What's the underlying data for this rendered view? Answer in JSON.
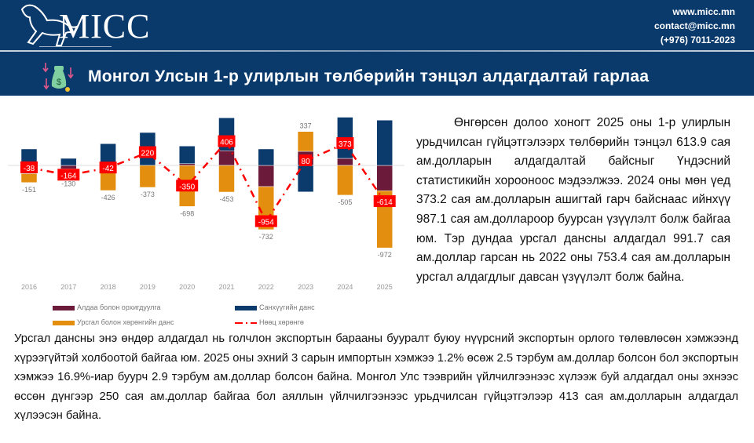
{
  "header": {
    "brand": "MICC",
    "website": "www.micc.mn",
    "email": "contact@micc.mn",
    "phone": "(+976) 7011-2023",
    "title": "Монгол Улсын 1-р улирлын төлбөрийн тэнцэл алдагдалтай гарлаа",
    "icon": "money-bag-down-arrows-icon"
  },
  "colors": {
    "header_bg": "#0a3a6c",
    "financial": "#0b3a6c",
    "errors": "#6b1a3a",
    "current": "#e38e0e",
    "reserves": "#ff0000"
  },
  "chart_data": {
    "type": "bar",
    "categories": [
      "2016",
      "2017",
      "2018",
      "2019",
      "2020",
      "2021",
      "2022",
      "2023",
      "2024",
      "2025"
    ],
    "series": [
      {
        "name": "Санхүүгийн данс",
        "key": "financial",
        "values": [
          280,
          120,
          330,
          560,
          300,
          560,
          280,
          -450,
          700,
          770
        ]
      },
      {
        "name": "Алдаа болон орхигдуулга",
        "key": "errors",
        "values": [
          -140,
          -60,
          40,
          0,
          30,
          250,
          -360,
          240,
          120,
          -430
        ]
      },
      {
        "name": "Урсгал болон хөрөнгийн данс",
        "key": "current",
        "values": [
          -151,
          -130,
          -426,
          -373,
          -698,
          -453,
          -732,
          337,
          -505,
          -972
        ]
      },
      {
        "name": "Нөөц хөрөнгө",
        "key": "reserves",
        "type": "line",
        "values": [
          -38,
          -164,
          -42,
          220,
          -350,
          406,
          -954,
          80,
          373,
          -614
        ]
      }
    ],
    "current_labels": [
      "-151",
      "-130",
      "-426",
      "-373",
      "-698",
      "-453",
      "-732",
      "337",
      "-505",
      "-972"
    ],
    "reserve_labels": [
      "-38",
      "-164",
      "-42",
      "220",
      "-350",
      "406",
      "-954",
      "80",
      "373",
      "-614"
    ],
    "legend": [
      "Алдаа болон орхигдуулга",
      "Санхүүгийн данс",
      "Урсгал болон хөрөнгийн данс",
      "Нөөц хөрөнгө"
    ],
    "legend_position": "bottom"
  },
  "text": {
    "p1": "Өнгөрсөн долоо хоногт 2025 оны 1-р улирлын урьдчилсан гүйцэтгэлээрх төлбөрийн тэнцэл 613.9 сая ам.долларын алдагдалтай байсныг Үндэсний статистикийн хорооноос мэдээлжээ. 2024 оны мөн үед 373.2 сая ам.долларын ашигтай гарч байснаас ийнхүү 987.1 сая ам.доллароор буурсан үзүүлэлт болж байгаа юм. Тэр дундаа урсгал дансны алдагдал 991.7 сая ам.доллар гарсан нь 2022 оны 753.4 сая ам.долларын урсгал алдагдлыг давсан үзүүлэлт болж байна.",
    "p2": "Урсгал дансны энэ өндөр алдагдал нь голчлон экспортын барааны бууралт буюу нүүрсний экспортын орлого төлөвлөсөн хэмжээнд хүрээгүйтэй холбоотой байгаа юм. 2025 оны эхний 3 сарын импортын хэмжээ 1.2% өсөж 2.5 тэрбум ам.доллар болсон бол экспортын хэмжээ 16.9%-иар буурч 2.9 тэрбум ам.доллар болсон байна. Монгол Улс тээврийн үйлчилгээнээс хүлээж буй алдагдал оны эхнээс өссөн дүнгээр 250 сая ам.доллар байгаа бол аяллын үйлчилгээнээс урьдчилсан гүйцэтгэлээр 413 сая ам.долларын алдагдал хүлээсэн байна."
  }
}
